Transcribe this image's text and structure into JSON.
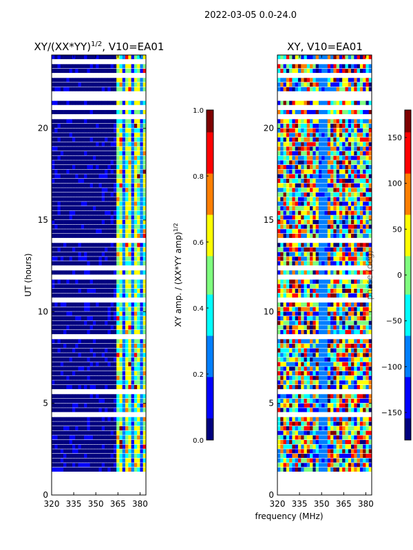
{
  "figure_title": "2022-03-05 0.0-24.0",
  "xlabel": "frequency (MHz)",
  "colormap": [
    "#00007f",
    "#0000ff",
    "#007fff",
    "#00ffff",
    "#7fff7f",
    "#ffff00",
    "#ff7f00",
    "#ff0000",
    "#7f0000"
  ],
  "chart_data": [
    {
      "type": "heatmap",
      "title": "XY/(XX*YY)",
      "title_exponent": "1/2",
      "title_suffix": ", V10=EA01",
      "xlabel": "",
      "ylabel": "UT (hours)",
      "xlim": [
        320,
        384
      ],
      "ylim": [
        0,
        24
      ],
      "xticks": [
        "320",
        "335",
        "350",
        "365",
        "380"
      ],
      "yticks": [
        "0",
        "5",
        "10",
        "15",
        "20"
      ],
      "colorbar": {
        "label": "XY amp. / (XX*YY amp)",
        "label_exponent": "1/2",
        "range": [
          0.0,
          1.0
        ],
        "ticks": [
          "0.0",
          "0.2",
          "0.4",
          "0.6",
          "0.8",
          "1.0"
        ]
      }
    },
    {
      "type": "heatmap",
      "title": "XY, V10=EA01",
      "xlabel": "",
      "ylabel": "",
      "xlim": [
        320,
        384
      ],
      "ylim": [
        0,
        24
      ],
      "xticks": [
        "320",
        "335",
        "350",
        "365",
        "380"
      ],
      "yticks": [
        "0",
        "5",
        "10",
        "15",
        "20"
      ],
      "colorbar": {
        "label": "phase (deg)",
        "range": [
          -180,
          180
        ],
        "ticks": [
          "−150",
          "−100",
          "−50",
          "0",
          "50",
          "100",
          "150"
        ]
      }
    }
  ]
}
